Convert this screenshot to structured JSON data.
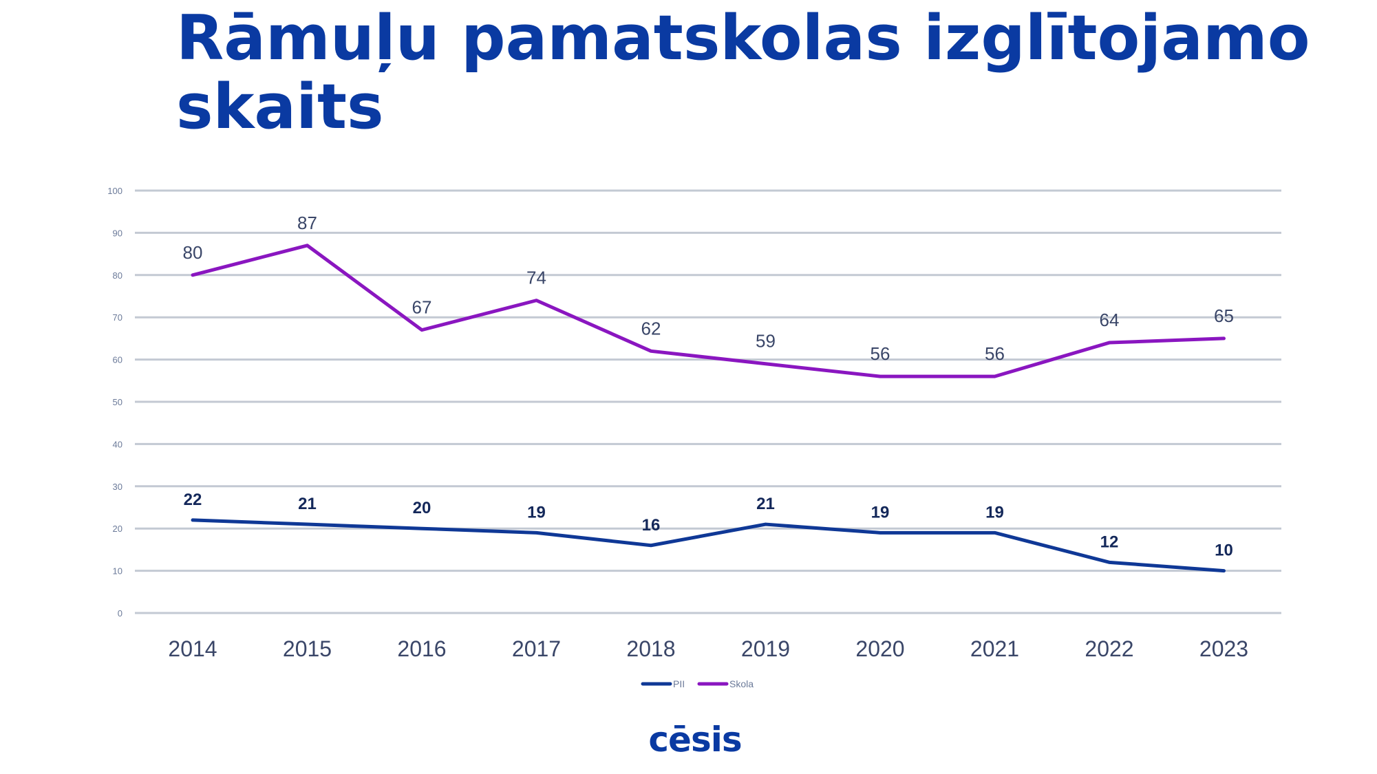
{
  "title": "Rāmuļu pamatskolas izglītojamo skaits",
  "logo_text": "cēsis",
  "colors": {
    "title": "#0a3aa2",
    "pii": "#0f3896",
    "skola": "#8a16c0",
    "grid": "#c3c9d3"
  },
  "chart_data": {
    "type": "line",
    "x": [
      "2014",
      "2015",
      "2016",
      "2017",
      "2018",
      "2019",
      "2020",
      "2021",
      "2022",
      "2023"
    ],
    "ylim": [
      0,
      100
    ],
    "yticks": [
      0,
      10,
      20,
      30,
      40,
      50,
      60,
      70,
      80,
      90,
      100
    ],
    "grid": true,
    "legend_position": "bottom",
    "series": [
      {
        "name": "PII",
        "color": "#0f3896",
        "values": [
          22,
          21,
          20,
          19,
          16,
          21,
          19,
          19,
          12,
          10
        ]
      },
      {
        "name": "Skola",
        "color": "#8a16c0",
        "values": [
          80,
          87,
          67,
          74,
          62,
          59,
          56,
          56,
          64,
          65
        ]
      }
    ]
  }
}
